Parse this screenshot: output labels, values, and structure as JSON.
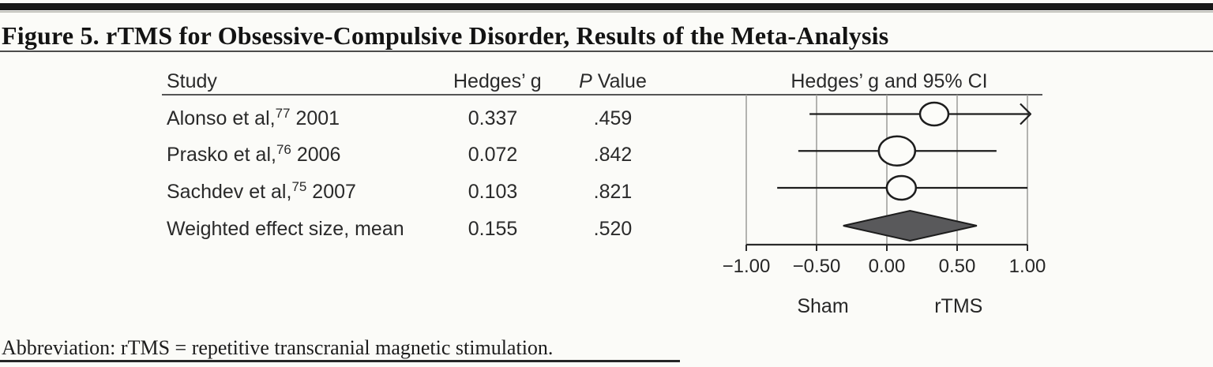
{
  "figure": {
    "title": "Figure 5. rTMS for Obsessive-Compulsive Disorder, Results of the Meta-Analysis",
    "footnote": "Abbreviation: rTMS = repetitive transcranial magnetic stimulation."
  },
  "table": {
    "headers": {
      "study": "Study",
      "hedges_g": "Hedges’ g",
      "p_italic": "P",
      "p_rest": " Value",
      "plot": "Hedges’ g and 95% CI"
    },
    "rows": [
      {
        "name": "Alonso et al,",
        "sup": "77",
        "year": " 2001",
        "g": "0.337",
        "p": ".459"
      },
      {
        "name": "Prasko et al,",
        "sup": "76",
        "year": " 2006",
        "g": "0.072",
        "p": ".842"
      },
      {
        "name": "Sachdev et al,",
        "sup": "75",
        "year": " 2007",
        "g": "0.103",
        "p": ".821"
      },
      {
        "name": "Weighted effect size, mean",
        "sup": "",
        "year": "",
        "g": "0.155",
        "p": ".520"
      }
    ]
  },
  "chart_data": {
    "type": "forest",
    "title": "Hedges’ g and 95% CI",
    "x_axis": {
      "min": -1.0,
      "max": 1.0,
      "ticks": [
        -1.0,
        -0.5,
        0.0,
        0.5,
        1.0
      ],
      "tick_labels": [
        "−1.00",
        "−0.50",
        "0.00",
        "0.50",
        "1.00"
      ],
      "left_group_label": "Sham",
      "right_group_label": "rTMS",
      "left_group_center": -0.455,
      "right_group_center": 0.51
    },
    "studies": [
      {
        "label": "Alonso et al, 2001",
        "hedges_g": 0.337,
        "p_value": 0.459,
        "ci_low": -0.55,
        "ci_high": 1.02,
        "arrow_high": true,
        "marker_rx": 18,
        "marker_ry": 14.5
      },
      {
        "label": "Prasko et al, 2006",
        "hedges_g": 0.072,
        "p_value": 0.842,
        "ci_low": -0.63,
        "ci_high": 0.78,
        "arrow_high": false,
        "marker_rx": 23,
        "marker_ry": 18.5
      },
      {
        "label": "Sachdev et al, 2007",
        "hedges_g": 0.103,
        "p_value": 0.821,
        "ci_low": -0.78,
        "ci_high": 1.0,
        "arrow_high": false,
        "marker_rx": 18.5,
        "marker_ry": 15
      }
    ],
    "summary": {
      "label": "Weighted effect size, mean",
      "hedges_g": 0.155,
      "p_value": 0.52,
      "ci_low": -0.31,
      "ci_high": 0.64
    },
    "colors": {
      "stroke": "#1d1d1d",
      "gridline": "#9b9b97",
      "marker_fill": "#fcfcf9",
      "diamond_fill": "#59595b",
      "axis": "#2a2a2a"
    }
  }
}
